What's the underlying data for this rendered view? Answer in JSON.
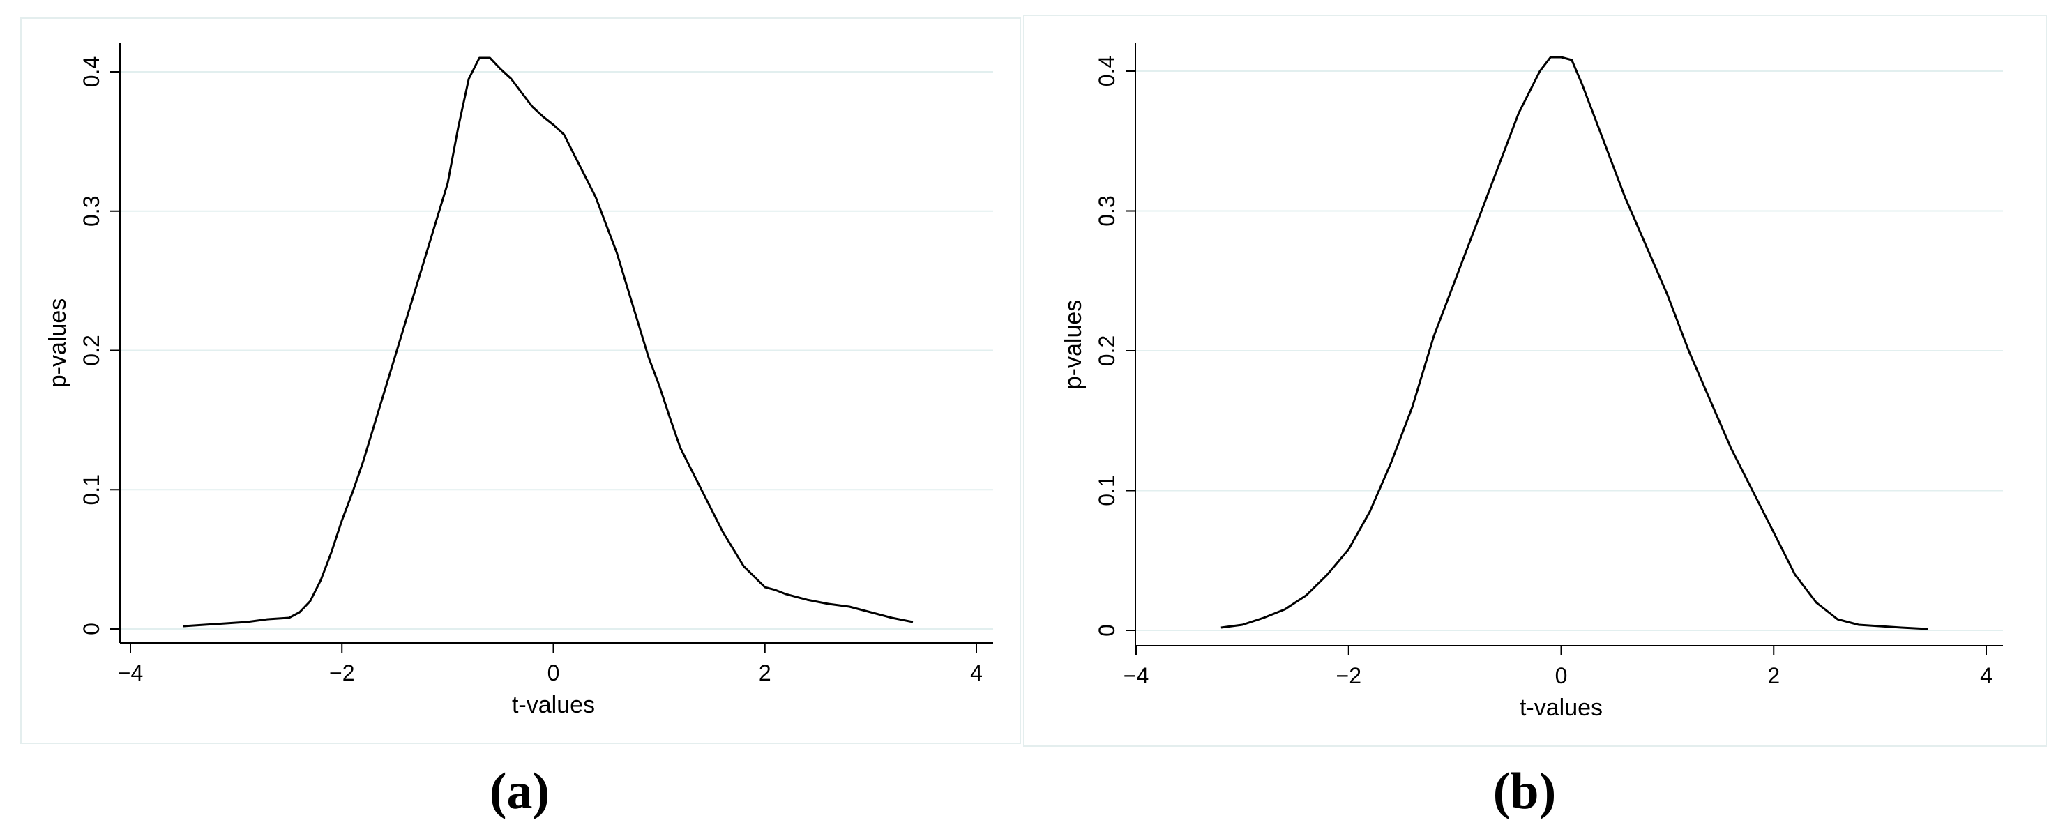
{
  "chart_data": [
    {
      "type": "line",
      "caption": "(a)",
      "xlabel": "t-values",
      "ylabel": "p-values",
      "xlim": [
        -4,
        4
      ],
      "ylim": [
        0,
        0.4
      ],
      "xticks": [
        "−4",
        "−2",
        "0",
        "2",
        "4"
      ],
      "yticks": [
        "0",
        "0.1",
        "0.2",
        "0.3",
        "0.4"
      ],
      "grid": true,
      "series": [
        {
          "x": [
            -3.5,
            -3.3,
            -3.1,
            -2.9,
            -2.7,
            -2.5,
            -2.4,
            -2.3,
            -2.2,
            -2.1,
            -2.0,
            -1.9,
            -1.8,
            -1.6,
            -1.4,
            -1.2,
            -1.0,
            -0.9,
            -0.8,
            -0.7,
            -0.6,
            -0.5,
            -0.4,
            -0.3,
            -0.2,
            -0.1,
            0.0,
            0.1,
            0.2,
            0.3,
            0.4,
            0.5,
            0.6,
            0.7,
            0.8,
            0.9,
            1.0,
            1.1,
            1.2,
            1.4,
            1.6,
            1.8,
            2.0,
            2.1,
            2.2,
            2.4,
            2.6,
            2.7,
            2.8,
            2.9,
            3.0,
            3.2,
            3.4
          ],
          "values": [
            0.002,
            0.003,
            0.004,
            0.005,
            0.007,
            0.008,
            0.012,
            0.02,
            0.035,
            0.055,
            0.078,
            0.098,
            0.12,
            0.17,
            0.22,
            0.27,
            0.32,
            0.36,
            0.395,
            0.41,
            0.41,
            0.402,
            0.395,
            0.385,
            0.375,
            0.368,
            0.362,
            0.355,
            0.34,
            0.325,
            0.31,
            0.29,
            0.27,
            0.245,
            0.22,
            0.195,
            0.175,
            0.152,
            0.13,
            0.1,
            0.07,
            0.045,
            0.03,
            0.028,
            0.025,
            0.021,
            0.018,
            0.017,
            0.016,
            0.014,
            0.012,
            0.008,
            0.005
          ]
        }
      ]
    },
    {
      "type": "line",
      "caption": "(b)",
      "xlabel": "t-values",
      "ylabel": "p-values",
      "xlim": [
        -4,
        4
      ],
      "ylim": [
        0,
        0.4
      ],
      "xticks": [
        "−4",
        "−2",
        "0",
        "2",
        "4"
      ],
      "yticks": [
        "0",
        "0.1",
        "0.2",
        "0.3",
        "0.4"
      ],
      "grid": true,
      "series": [
        {
          "x": [
            -3.2,
            -3.0,
            -2.8,
            -2.6,
            -2.4,
            -2.2,
            -2.0,
            -1.8,
            -1.6,
            -1.4,
            -1.2,
            -1.0,
            -0.8,
            -0.6,
            -0.4,
            -0.2,
            -0.1,
            0.0,
            0.1,
            0.2,
            0.4,
            0.6,
            0.8,
            1.0,
            1.2,
            1.4,
            1.6,
            1.8,
            2.0,
            2.2,
            2.4,
            2.6,
            2.8,
            3.0,
            3.2,
            3.45
          ],
          "values": [
            0.002,
            0.004,
            0.009,
            0.015,
            0.025,
            0.04,
            0.058,
            0.085,
            0.12,
            0.16,
            0.21,
            0.25,
            0.29,
            0.33,
            0.37,
            0.4,
            0.41,
            0.41,
            0.408,
            0.39,
            0.35,
            0.31,
            0.275,
            0.24,
            0.2,
            0.165,
            0.13,
            0.1,
            0.07,
            0.04,
            0.02,
            0.008,
            0.004,
            0.003,
            0.002,
            0.001
          ]
        }
      ]
    }
  ]
}
